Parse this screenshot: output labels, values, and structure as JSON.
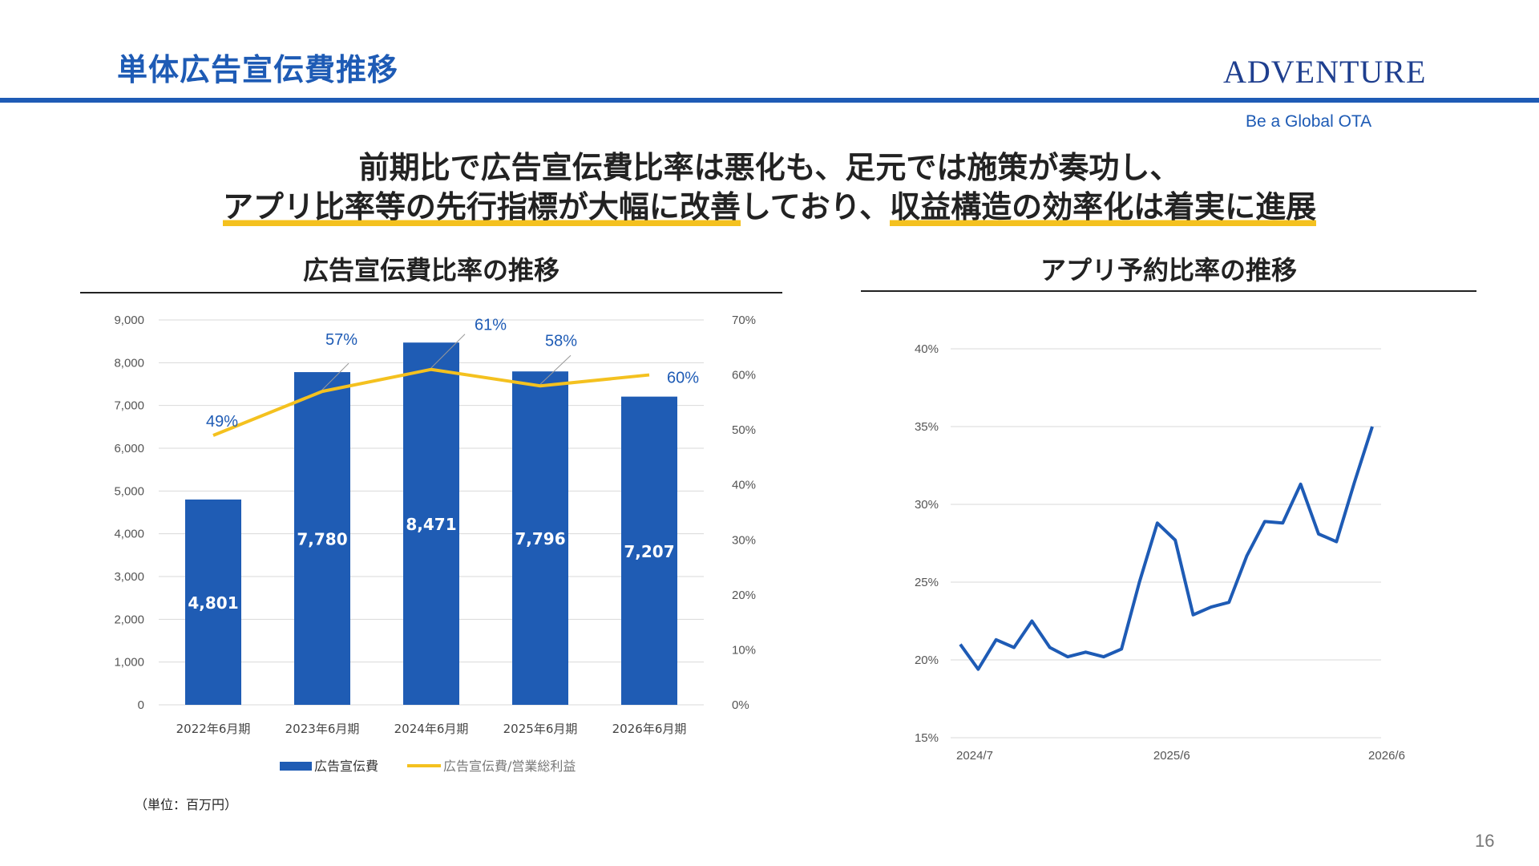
{
  "header": {
    "title": "単体広告宣伝費推移",
    "brand": "ADVENTURE",
    "tagline": "Be a Global OTA"
  },
  "headline": {
    "line1": "前期比で広告宣伝費比率は悪化も、足元では施策が奏功し、",
    "line2_highlight1": "アプリ比率等の先行指標が大幅に改善",
    "line2_middle": "しており、",
    "line2_highlight2": "収益構造の効率化は着実に進展"
  },
  "colors": {
    "brand_blue": "#1e5bb5",
    "bar_blue": "#1f5cb4",
    "line_yellow": "#f4c11f"
  },
  "unit_note": "（単位：百万円）",
  "page_number": "16",
  "chart_data": [
    {
      "type": "bar",
      "title": "広告宣伝費比率の推移",
      "categories": [
        "2022年6月期",
        "2023年6月期",
        "2024年6月期",
        "2025年6月期",
        "2026年6月期"
      ],
      "series": [
        {
          "name": "広告宣伝費",
          "axis": "left",
          "values": [
            4801,
            7780,
            8471,
            7796,
            7207
          ],
          "labels": [
            "4,801",
            "7,780",
            "8,471",
            "7,796",
            "7,207"
          ]
        },
        {
          "name": "広告宣伝費/営業総利益",
          "type": "line",
          "axis": "right",
          "values": [
            49,
            57,
            61,
            58,
            60
          ],
          "labels": [
            "49%",
            "57%",
            "61%",
            "58%",
            "60%"
          ]
        }
      ],
      "left_axis": {
        "ylim": [
          0,
          9000
        ],
        "ticks": [
          "0",
          "1,000",
          "2,000",
          "3,000",
          "4,000",
          "5,000",
          "6,000",
          "7,000",
          "8,000",
          "9,000"
        ]
      },
      "right_axis": {
        "ylim": [
          0,
          70
        ],
        "ticks": [
          "0%",
          "10%",
          "20%",
          "30%",
          "40%",
          "50%",
          "60%",
          "70%"
        ]
      },
      "grid": true,
      "legend": "bottom"
    },
    {
      "type": "line",
      "title": "アプリ予約比率の推移",
      "x_ticks": [
        "2024/7",
        "2025/6",
        "2026/6"
      ],
      "series": [
        {
          "values": [
            21.0,
            19.4,
            21.3,
            20.8,
            22.5,
            20.8,
            20.2,
            20.5,
            20.2,
            20.7,
            25.0,
            28.8,
            27.7,
            22.9,
            23.4,
            23.7,
            26.7,
            28.9,
            28.8,
            31.3,
            28.1,
            27.6,
            31.4,
            35.0
          ]
        }
      ],
      "ylim": [
        15,
        40
      ],
      "y_ticks": [
        "15%",
        "20%",
        "25%",
        "30%",
        "35%",
        "40%"
      ],
      "grid": true,
      "legend": "none"
    }
  ]
}
